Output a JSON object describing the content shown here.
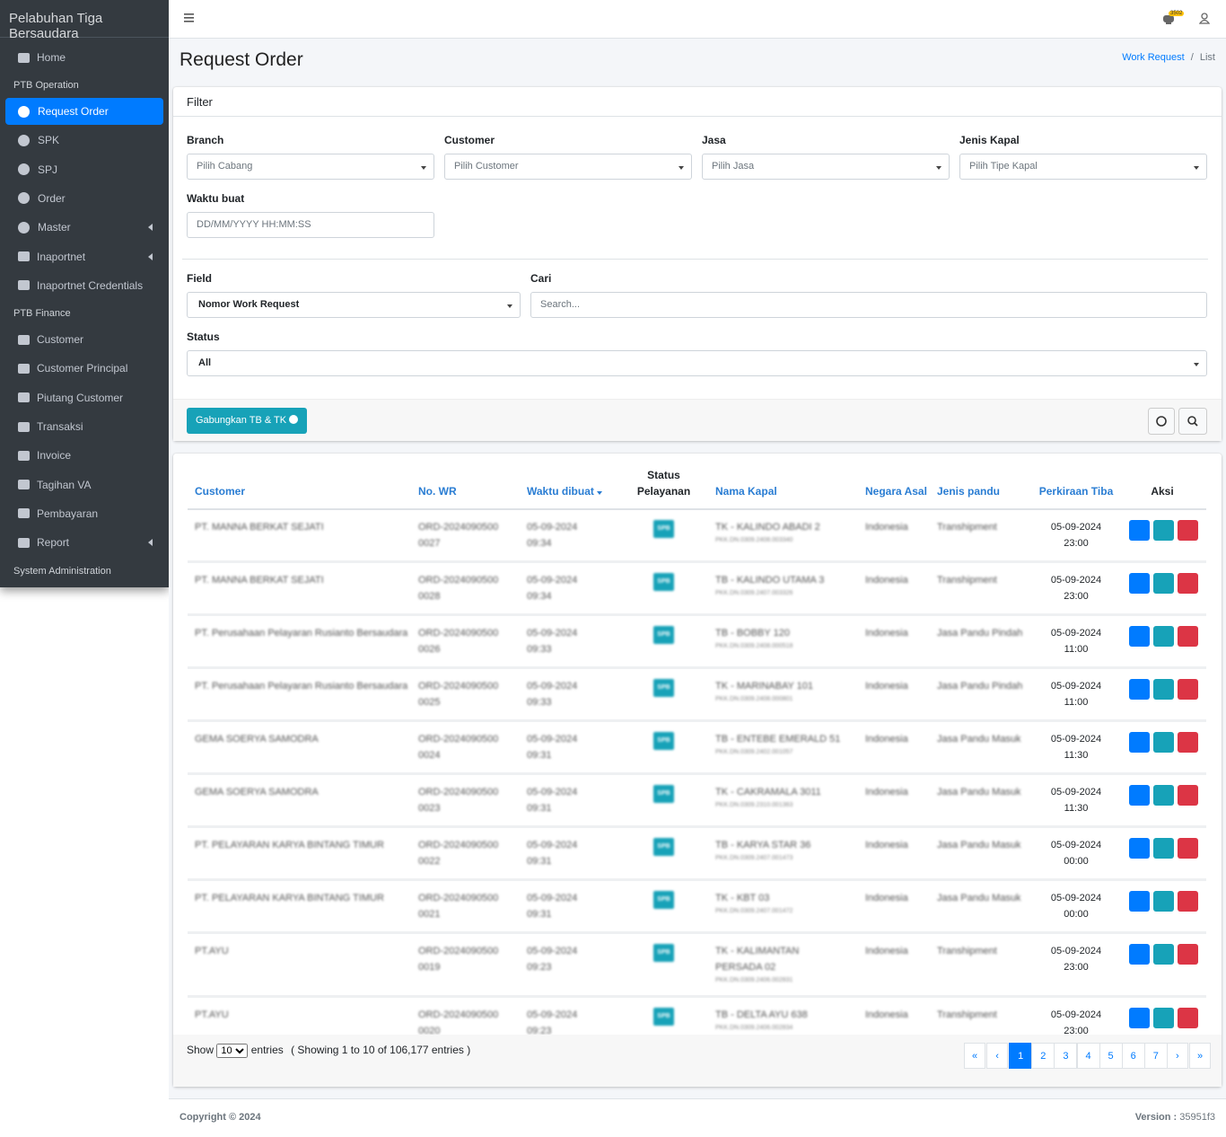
{
  "sidebar": {
    "brand": "Pelabuhan Tiga Bersaudara",
    "home": "Home",
    "sections": [
      {
        "title": "PTB Operation",
        "items": [
          {
            "label": "Request Order",
            "active": true
          },
          {
            "label": "SPK"
          },
          {
            "label": "SPJ"
          },
          {
            "label": "Order"
          },
          {
            "label": "Master",
            "submenu": true
          },
          {
            "label": "Inaportnet",
            "submenu": true
          },
          {
            "label": "Inaportnet Credentials"
          }
        ]
      },
      {
        "title": "PTB Finance",
        "items": [
          {
            "label": "Customer"
          },
          {
            "label": "Customer Principal"
          },
          {
            "label": "Piutang Customer"
          },
          {
            "label": "Transaksi"
          },
          {
            "label": "Invoice"
          },
          {
            "label": "Tagihan VA"
          },
          {
            "label": "Pembayaran"
          },
          {
            "label": "Report",
            "submenu": true
          }
        ]
      },
      {
        "title": "System Administration",
        "items": []
      }
    ]
  },
  "header": {
    "notification_count": "3502"
  },
  "page": {
    "title": "Request Order",
    "breadcrumb": [
      "Work Request",
      "List"
    ]
  },
  "filter": {
    "title": "Filter",
    "selects": [
      {
        "label": "Branch",
        "placeholder": "Pilih Cabang"
      },
      {
        "label": "Customer",
        "placeholder": "Pilih Customer"
      },
      {
        "label": "Jasa",
        "placeholder": "Pilih Jasa"
      },
      {
        "label": "Jenis Kapal",
        "placeholder": "Pilih Tipe Kapal"
      }
    ],
    "waktu_label": "Waktu buat",
    "waktu_placeholder": "DD/MM/YYYY HH:MM:SS",
    "field_label": "Field",
    "field_value": "Nomor Work Request",
    "cari_label": "Cari",
    "cari_placeholder": "Search...",
    "status_label": "Status",
    "status_value": "All",
    "merge_button": "Gabungkan TB & TK"
  },
  "table": {
    "columns": [
      "Customer",
      "No. WR",
      "Waktu dibuat",
      "Status Pelayanan",
      "Nama Kapal",
      "Negara Asal",
      "Jenis pandu",
      "Perkiraan Tiba",
      "Aksi"
    ],
    "rows": [
      {
        "customer": "PT. MANNA BERKAT SEJATI",
        "no_wr": "ORD-20240905000027",
        "waktu": "05-09-2024 09:34",
        "status": "SPB",
        "kapal": "TK - KALINDO ABADI 2",
        "kapal_ref": "PKK.DN.0309.2408.003340",
        "negara": "Indonesia",
        "pandu": "Transhipment",
        "tiba": "05-09-2024 23:00"
      },
      {
        "customer": "PT. MANNA BERKAT SEJATI",
        "no_wr": "ORD-20240905000028",
        "waktu": "05-09-2024 09:34",
        "status": "SPB",
        "kapal": "TB - KALINDO UTAMA 3",
        "kapal_ref": "PKK.DN.0309.2407.003326",
        "negara": "Indonesia",
        "pandu": "Transhipment",
        "tiba": "05-09-2024 23:00"
      },
      {
        "customer": "PT. Perusahaan Pelayaran Rusianto Bersaudara",
        "no_wr": "ORD-20240905000026",
        "waktu": "05-09-2024 09:33",
        "status": "SPB",
        "kapal": "TB - BOBBY 120",
        "kapal_ref": "PKK.DN.0309.2408.000518",
        "negara": "Indonesia",
        "pandu": "Jasa Pandu Pindah",
        "tiba": "05-09-2024 11:00"
      },
      {
        "customer": "PT. Perusahaan Pelayaran Rusianto Bersaudara",
        "no_wr": "ORD-20240905000025",
        "waktu": "05-09-2024 09:33",
        "status": "SPB",
        "kapal": "TK - MARINABAY 101",
        "kapal_ref": "PKK.DN.0309.2408.000801",
        "negara": "Indonesia",
        "pandu": "Jasa Pandu Pindah",
        "tiba": "05-09-2024 11:00"
      },
      {
        "customer": "GEMA SOERYA SAMODRA",
        "no_wr": "ORD-20240905000024",
        "waktu": "05-09-2024 09:31",
        "status": "SPB",
        "kapal": "TB - ENTEBE EMERALD 51",
        "kapal_ref": "PKK.DN.0309.2402.001057",
        "negara": "Indonesia",
        "pandu": "Jasa Pandu Masuk",
        "tiba": "05-09-2024 11:30"
      },
      {
        "customer": "GEMA SOERYA SAMODRA",
        "no_wr": "ORD-20240905000023",
        "waktu": "05-09-2024 09:31",
        "status": "SPB",
        "kapal": "TK - CAKRAMALA 3011",
        "kapal_ref": "PKK.DN.0309.2310.001363",
        "negara": "Indonesia",
        "pandu": "Jasa Pandu Masuk",
        "tiba": "05-09-2024 11:30"
      },
      {
        "customer": "PT. PELAYARAN KARYA BINTANG TIMUR",
        "no_wr": "ORD-20240905000022",
        "waktu": "05-09-2024 09:31",
        "status": "SPB",
        "kapal": "TB - KARYA STAR 36",
        "kapal_ref": "PKK.DN.0309.2407.001473",
        "negara": "Indonesia",
        "pandu": "Jasa Pandu Masuk",
        "tiba": "05-09-2024 00:00"
      },
      {
        "customer": "PT. PELAYARAN KARYA BINTANG TIMUR",
        "no_wr": "ORD-20240905000021",
        "waktu": "05-09-2024 09:31",
        "status": "SPB",
        "kapal": "TK - KBT 03",
        "kapal_ref": "PKK.DN.0309.2407.001472",
        "negara": "Indonesia",
        "pandu": "Jasa Pandu Masuk",
        "tiba": "05-09-2024 00:00"
      },
      {
        "customer": "PT.AYU",
        "no_wr": "ORD-20240905000019",
        "waktu": "05-09-2024 09:23",
        "status": "SPB",
        "kapal": "TK - KALIMANTAN PERSADA 02",
        "kapal_ref": "PKK.DN.0309.2406.002831",
        "negara": "Indonesia",
        "pandu": "Transhipment",
        "tiba": "05-09-2024 23:00"
      },
      {
        "customer": "PT.AYU",
        "no_wr": "ORD-20240905000020",
        "waktu": "05-09-2024 09:23",
        "status": "SPB",
        "kapal": "TB - DELTA AYU 638",
        "kapal_ref": "PKK.DN.0309.2406.002834",
        "negara": "Indonesia",
        "pandu": "Transhipment",
        "tiba": "05-09-2024 23:00"
      }
    ],
    "show_label": "Show",
    "page_size": "10",
    "entries_label": "entries",
    "summary": "( Showing 1 to 10 of 106,177 entries )",
    "pagination": [
      "«",
      "‹",
      "1",
      "2",
      "3",
      "4",
      "5",
      "6",
      "7",
      "›",
      "»"
    ],
    "active_page": "1"
  },
  "footer": {
    "copyright": "Copyright © 2024",
    "version_label": "Version :",
    "version": "35951f3"
  }
}
